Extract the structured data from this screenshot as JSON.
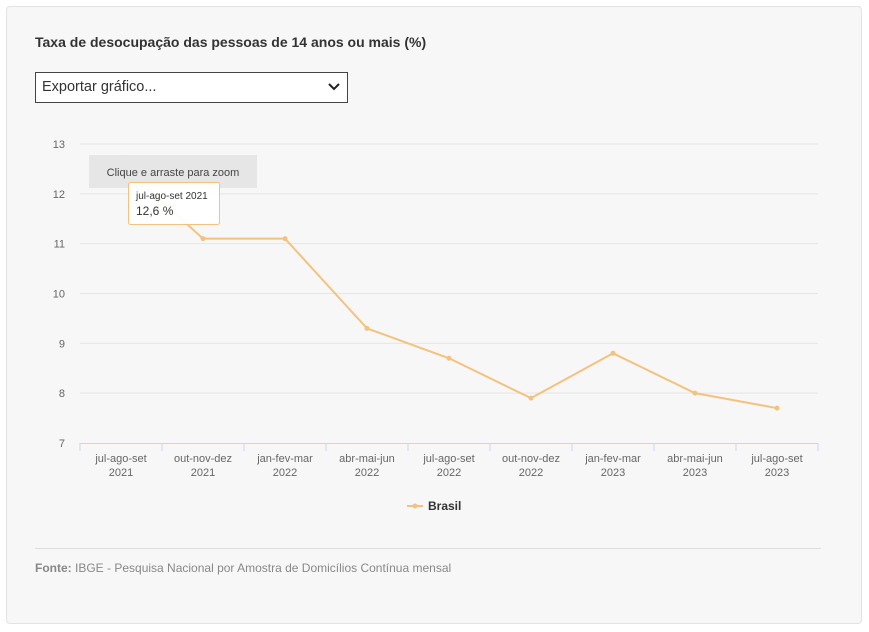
{
  "title": "Taxa de desocupação das pessoas de 14 anos ou mais (%)",
  "export_select": {
    "value": "Exportar gráfico..."
  },
  "zoom_hint": "Clique e arraste para zoom",
  "tooltip": {
    "label": "jul-ago-set 2021",
    "value": "12,6 %"
  },
  "source": {
    "label": "Fonte:",
    "text": "IBGE - Pesquisa Nacional por Amostra de Domicílios Contínua mensal"
  },
  "colors": {
    "series": "#f3c27f",
    "background": "#f7f7f7"
  },
  "chart_data": {
    "type": "line",
    "categories": [
      [
        "jul-ago-set",
        "2021"
      ],
      [
        "out-nov-dez",
        "2021"
      ],
      [
        "jan-fev-mar",
        "2022"
      ],
      [
        "abr-mai-jun",
        "2022"
      ],
      [
        "jul-ago-set",
        "2022"
      ],
      [
        "out-nov-dez",
        "2022"
      ],
      [
        "jan-fev-mar",
        "2023"
      ],
      [
        "abr-mai-jun",
        "2023"
      ],
      [
        "jul-ago-set",
        "2023"
      ]
    ],
    "series": [
      {
        "name": "Brasil",
        "values": [
          12.6,
          11.1,
          11.1,
          9.3,
          8.7,
          7.9,
          8.8,
          8.0,
          7.7
        ]
      }
    ],
    "ylim": [
      7,
      13
    ],
    "yticks": [
      7,
      8,
      9,
      10,
      11,
      12,
      13
    ],
    "grid": true,
    "legend": "bottom-center"
  }
}
